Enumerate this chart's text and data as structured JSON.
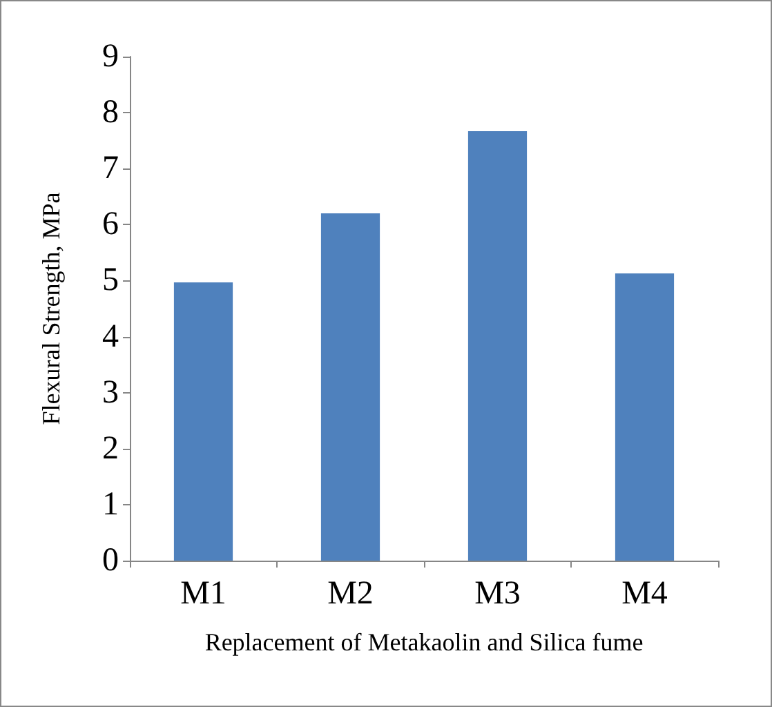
{
  "chart_data": {
    "type": "bar",
    "xlabel": "Replacement of Metakaolin and Silica fume",
    "ylabel": "Flexural Strength, MPa",
    "categories": [
      "M1",
      "M2",
      "M3",
      "M4"
    ],
    "values": [
      4.97,
      6.2,
      7.67,
      5.13
    ],
    "color": "#4f81bd",
    "ylim": [
      0,
      9
    ],
    "yticks": [
      0,
      1,
      2,
      3,
      4,
      5,
      6,
      7,
      8,
      9
    ],
    "grid": false
  }
}
